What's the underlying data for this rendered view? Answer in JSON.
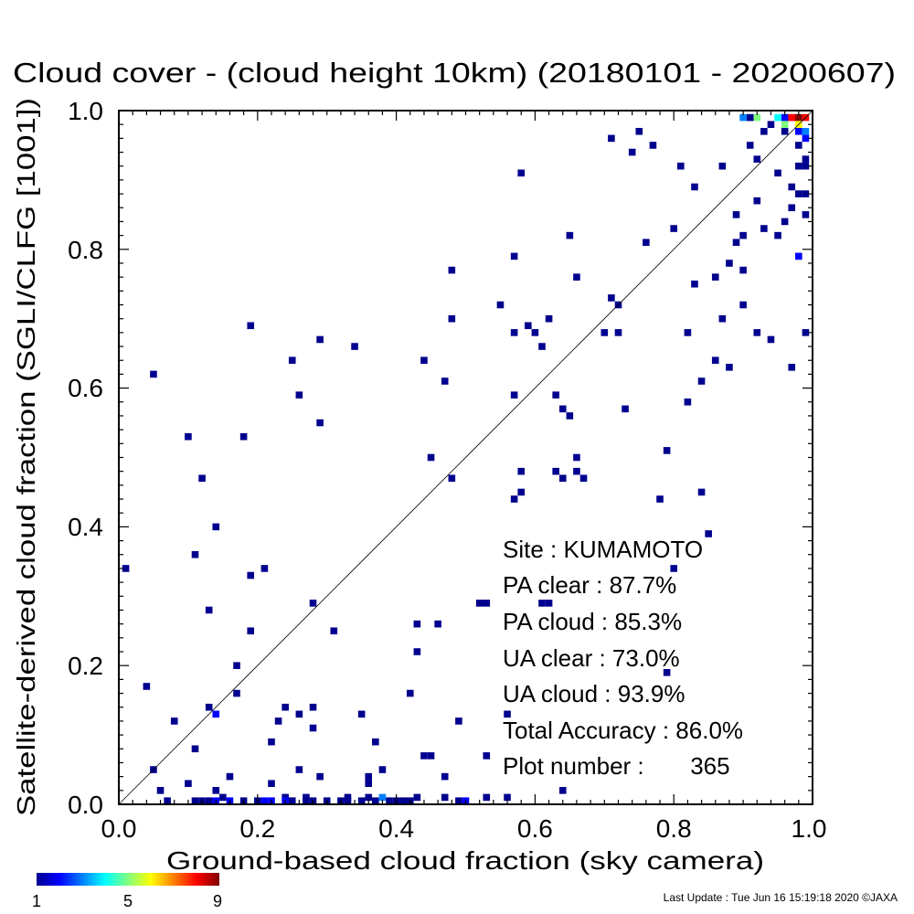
{
  "chart_data": {
    "type": "heatmap",
    "title": "Cloud cover - (cloud height 10km)  (20180101 - 20200607)",
    "xlabel": "Ground-based cloud fraction (sky camera)",
    "ylabel": "Satellite-derived cloud fraction (SGLI/CLFG [1001])",
    "xlim": [
      0,
      1
    ],
    "ylim": [
      0,
      1
    ],
    "x_ticks": [
      "0.0",
      "0.2",
      "0.4",
      "0.6",
      "0.8",
      "1.0"
    ],
    "y_ticks": [
      "0.0",
      "0.2",
      "0.4",
      "0.6",
      "0.8",
      "1.0"
    ],
    "bin_size": 0.01,
    "reference_line": "y = x",
    "colorbar": {
      "min": 1,
      "max": 9,
      "tick_labels": [
        "1",
        "5",
        "9"
      ]
    },
    "points": [
      [
        0.01,
        0.34,
        1
      ],
      [
        0.04,
        0.17,
        1
      ],
      [
        0.05,
        0.62,
        1
      ],
      [
        0.05,
        0.05,
        1
      ],
      [
        0.06,
        0.02,
        1
      ],
      [
        0.07,
        0.005,
        1
      ],
      [
        0.08,
        0.12,
        1
      ],
      [
        0.1,
        0.53,
        1
      ],
      [
        0.1,
        0.03,
        1
      ],
      [
        0.11,
        0.36,
        1
      ],
      [
        0.11,
        0.08,
        1
      ],
      [
        0.12,
        0.47,
        1
      ],
      [
        0.11,
        0.005,
        1
      ],
      [
        0.12,
        0.005,
        1
      ],
      [
        0.13,
        0.005,
        1
      ],
      [
        0.13,
        0.28,
        1
      ],
      [
        0.13,
        0.14,
        1
      ],
      [
        0.14,
        0.4,
        1
      ],
      [
        0.14,
        0.13,
        2
      ],
      [
        0.14,
        0.005,
        2
      ],
      [
        0.14,
        0.02,
        1
      ],
      [
        0.15,
        0.01,
        1
      ],
      [
        0.16,
        0.04,
        1
      ],
      [
        0.16,
        0.005,
        2
      ],
      [
        0.17,
        0.2,
        1
      ],
      [
        0.17,
        0.16,
        1
      ],
      [
        0.18,
        0.53,
        1
      ],
      [
        0.18,
        0.005,
        1
      ],
      [
        0.19,
        0.69,
        1
      ],
      [
        0.19,
        0.33,
        1
      ],
      [
        0.19,
        0.25,
        1
      ],
      [
        0.2,
        0.005,
        1
      ],
      [
        0.21,
        0.34,
        1
      ],
      [
        0.21,
        0.005,
        2
      ],
      [
        0.22,
        0.09,
        1
      ],
      [
        0.22,
        0.03,
        1
      ],
      [
        0.22,
        0.005,
        2
      ],
      [
        0.23,
        0.12,
        1
      ],
      [
        0.24,
        0.14,
        1
      ],
      [
        0.24,
        0.01,
        1
      ],
      [
        0.24,
        0.005,
        2
      ],
      [
        0.25,
        0.64,
        1
      ],
      [
        0.25,
        0.005,
        1
      ],
      [
        0.26,
        0.59,
        1
      ],
      [
        0.26,
        0.13,
        1
      ],
      [
        0.26,
        0.05,
        1
      ],
      [
        0.27,
        0.005,
        1
      ],
      [
        0.27,
        0.01,
        1
      ],
      [
        0.28,
        0.29,
        1
      ],
      [
        0.28,
        0.14,
        1
      ],
      [
        0.28,
        0.11,
        1
      ],
      [
        0.28,
        0.005,
        1
      ],
      [
        0.29,
        0.67,
        1
      ],
      [
        0.29,
        0.55,
        1
      ],
      [
        0.29,
        0.04,
        1
      ],
      [
        0.3,
        0.005,
        1
      ],
      [
        0.31,
        0.25,
        1
      ],
      [
        0.32,
        0.005,
        1
      ],
      [
        0.33,
        0.005,
        1
      ],
      [
        0.33,
        0.01,
        1
      ],
      [
        0.34,
        0.66,
        1
      ],
      [
        0.35,
        0.13,
        1
      ],
      [
        0.35,
        0.005,
        1
      ],
      [
        0.36,
        0.04,
        1
      ],
      [
        0.36,
        0.03,
        1
      ],
      [
        0.36,
        0.01,
        1
      ],
      [
        0.37,
        0.09,
        1
      ],
      [
        0.37,
        0.005,
        1
      ],
      [
        0.38,
        0.05,
        1
      ],
      [
        0.38,
        0.01,
        3
      ],
      [
        0.39,
        0.005,
        1
      ],
      [
        0.4,
        0.005,
        1
      ],
      [
        0.41,
        0.005,
        1
      ],
      [
        0.42,
        0.16,
        1
      ],
      [
        0.42,
        0.005,
        1
      ],
      [
        0.43,
        0.22,
        1
      ],
      [
        0.43,
        0.26,
        1
      ],
      [
        0.43,
        0.01,
        1
      ],
      [
        0.44,
        0.64,
        1
      ],
      [
        0.44,
        0.07,
        1
      ],
      [
        0.45,
        0.5,
        1
      ],
      [
        0.45,
        0.07,
        1
      ],
      [
        0.46,
        0.26,
        1
      ],
      [
        0.47,
        0.61,
        1
      ],
      [
        0.47,
        0.04,
        1
      ],
      [
        0.47,
        0.01,
        1
      ],
      [
        0.48,
        0.77,
        1
      ],
      [
        0.48,
        0.7,
        1
      ],
      [
        0.48,
        0.47,
        1
      ],
      [
        0.49,
        0.12,
        1
      ],
      [
        0.49,
        0.005,
        1
      ],
      [
        0.5,
        0.005,
        2
      ],
      [
        0.52,
        0.29,
        1
      ],
      [
        0.53,
        0.29,
        1
      ],
      [
        0.53,
        0.07,
        1
      ],
      [
        0.53,
        0.01,
        1
      ],
      [
        0.55,
        0.72,
        1
      ],
      [
        0.56,
        0.13,
        1
      ],
      [
        0.56,
        0.01,
        1
      ],
      [
        0.57,
        0.79,
        1
      ],
      [
        0.57,
        0.68,
        1
      ],
      [
        0.57,
        0.59,
        1
      ],
      [
        0.57,
        0.44,
        1
      ],
      [
        0.58,
        0.91,
        1
      ],
      [
        0.58,
        0.48,
        1
      ],
      [
        0.58,
        0.45,
        1
      ],
      [
        0.59,
        0.69,
        1
      ],
      [
        0.6,
        0.68,
        1
      ],
      [
        0.61,
        0.66,
        1
      ],
      [
        0.61,
        0.29,
        1
      ],
      [
        0.62,
        0.7,
        1
      ],
      [
        0.62,
        0.29,
        1
      ],
      [
        0.63,
        0.59,
        1
      ],
      [
        0.63,
        0.48,
        1
      ],
      [
        0.64,
        0.47,
        1
      ],
      [
        0.64,
        0.57,
        1
      ],
      [
        0.64,
        0.02,
        1
      ],
      [
        0.65,
        0.82,
        1
      ],
      [
        0.65,
        0.56,
        1
      ],
      [
        0.66,
        0.76,
        1
      ],
      [
        0.66,
        0.5,
        1
      ],
      [
        0.66,
        0.48,
        1
      ],
      [
        0.67,
        0.47,
        1
      ],
      [
        0.7,
        0.68,
        1
      ],
      [
        0.71,
        0.96,
        1
      ],
      [
        0.71,
        0.73,
        1
      ],
      [
        0.72,
        0.68,
        1
      ],
      [
        0.72,
        0.72,
        1
      ],
      [
        0.73,
        0.57,
        1
      ],
      [
        0.74,
        0.94,
        1
      ],
      [
        0.75,
        0.97,
        1
      ],
      [
        0.76,
        0.81,
        1
      ],
      [
        0.77,
        0.95,
        1
      ],
      [
        0.78,
        0.44,
        1
      ],
      [
        0.79,
        0.51,
        1
      ],
      [
        0.79,
        0.19,
        1
      ],
      [
        0.8,
        0.83,
        1
      ],
      [
        0.8,
        0.34,
        1
      ],
      [
        0.81,
        0.92,
        1
      ],
      [
        0.82,
        0.68,
        1
      ],
      [
        0.82,
        0.58,
        1
      ],
      [
        0.83,
        0.89,
        1
      ],
      [
        0.83,
        0.75,
        1
      ],
      [
        0.84,
        0.45,
        1
      ],
      [
        0.84,
        0.61,
        1
      ],
      [
        0.85,
        0.39,
        1
      ],
      [
        0.86,
        0.76,
        1
      ],
      [
        0.86,
        0.64,
        1
      ],
      [
        0.87,
        0.92,
        1
      ],
      [
        0.87,
        0.7,
        1
      ],
      [
        0.88,
        0.78,
        1
      ],
      [
        0.88,
        0.63,
        1
      ],
      [
        0.89,
        0.85,
        1
      ],
      [
        0.89,
        0.81,
        1
      ],
      [
        0.9,
        0.82,
        1
      ],
      [
        0.9,
        0.77,
        1
      ],
      [
        0.9,
        0.72,
        1
      ],
      [
        0.91,
        0.99,
        1
      ],
      [
        0.91,
        0.95,
        1
      ],
      [
        0.92,
        0.93,
        1
      ],
      [
        0.92,
        0.68,
        1
      ],
      [
        0.92,
        0.87,
        1
      ],
      [
        0.93,
        0.97,
        1
      ],
      [
        0.93,
        0.83,
        1
      ],
      [
        0.94,
        0.98,
        1
      ],
      [
        0.94,
        0.67,
        1
      ],
      [
        0.95,
        0.91,
        1
      ],
      [
        0.95,
        0.82,
        1
      ],
      [
        0.96,
        0.99,
        2
      ],
      [
        0.96,
        0.84,
        1
      ],
      [
        0.96,
        0.97,
        1
      ],
      [
        0.97,
        0.86,
        1
      ],
      [
        0.97,
        0.89,
        1
      ],
      [
        0.97,
        0.63,
        1
      ],
      [
        0.98,
        0.79,
        2
      ],
      [
        0.98,
        0.92,
        1
      ],
      [
        0.98,
        0.95,
        1
      ],
      [
        0.98,
        0.88,
        1
      ],
      [
        0.98,
        0.97,
        2
      ],
      [
        0.99,
        0.99,
        8
      ],
      [
        0.99,
        0.96,
        2
      ],
      [
        0.99,
        0.93,
        1
      ],
      [
        0.99,
        0.88,
        1
      ],
      [
        0.99,
        0.85,
        1
      ],
      [
        0.99,
        0.92,
        1
      ],
      [
        0.99,
        0.68,
        1
      ],
      [
        0.98,
        0.99,
        9
      ],
      [
        0.97,
        0.99,
        8
      ],
      [
        0.96,
        0.98,
        5
      ],
      [
        0.95,
        0.99,
        4
      ],
      [
        0.92,
        0.99,
        5
      ],
      [
        0.9,
        0.99,
        3
      ],
      [
        0.98,
        0.98,
        6
      ],
      [
        0.99,
        0.97,
        3
      ]
    ]
  },
  "stats": {
    "site": "Site : KUMAMOTO",
    "pa_clear": "PA clear :  87.7%",
    "pa_cloud": "PA cloud :  85.3%",
    "ua_clear": "UA clear :  73.0%",
    "ua_cloud": "UA cloud :  93.9%",
    "total_accuracy": "Total Accuracy :  86.0%",
    "plot_number": "Plot number :       365"
  },
  "footer": {
    "last_update": "Last Update : Tue Jun 16 15:19:18 2020  ©JAXA"
  }
}
